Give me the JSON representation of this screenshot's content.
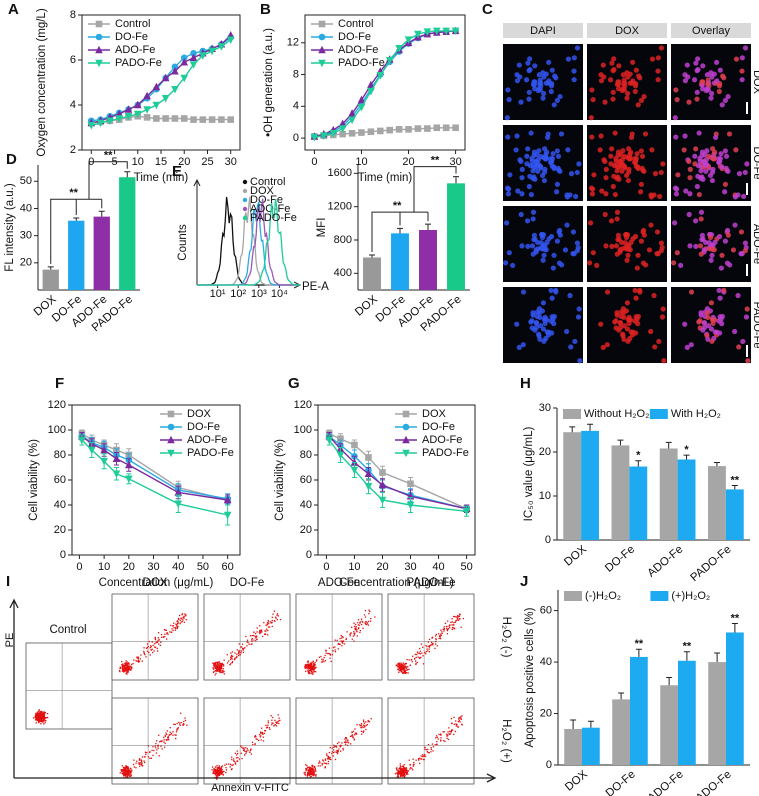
{
  "chart_data": [
    {
      "panel": "A",
      "type": "line",
      "x_label": "Time (min)",
      "y_label": "Oxygen concentration (mg/L)",
      "xlim": [
        -2,
        32
      ],
      "xticks": [
        0,
        5,
        10,
        15,
        20,
        25,
        30
      ],
      "ylim": [
        2,
        8
      ],
      "yticks": [
        2,
        4,
        6,
        8
      ],
      "legend": "upper left",
      "x": [
        0,
        2,
        4,
        6,
        8,
        10,
        12,
        14,
        16,
        18,
        20,
        22,
        24,
        26,
        28,
        30
      ],
      "series": [
        {
          "name": "Control",
          "color": "#a6a6a6",
          "marker": "square",
          "values": [
            3.2,
            3.25,
            3.3,
            3.35,
            3.45,
            3.5,
            3.45,
            3.4,
            3.4,
            3.4,
            3.4,
            3.35,
            3.35,
            3.35,
            3.35,
            3.35
          ]
        },
        {
          "name": "DO-Fe",
          "color": "#29abe2",
          "marker": "circle",
          "values": [
            3.3,
            3.35,
            3.5,
            3.65,
            3.8,
            4.0,
            4.3,
            4.7,
            5.2,
            5.7,
            6.1,
            6.3,
            6.4,
            6.5,
            6.7,
            7.0
          ]
        },
        {
          "name": "ADO-Fe",
          "color": "#7b2a9e",
          "marker": "triangle",
          "values": [
            3.2,
            3.3,
            3.45,
            3.6,
            3.8,
            4.0,
            4.4,
            4.8,
            5.2,
            5.5,
            5.9,
            6.1,
            6.3,
            6.5,
            6.7,
            7.1
          ]
        },
        {
          "name": "PADO-Fe",
          "color": "#1fcc9a",
          "marker": "triangle-down",
          "values": [
            3.1,
            3.2,
            3.3,
            3.4,
            3.5,
            3.6,
            3.8,
            4.0,
            4.3,
            4.7,
            5.2,
            5.8,
            6.2,
            6.4,
            6.6,
            6.9
          ]
        }
      ]
    },
    {
      "panel": "B",
      "type": "line",
      "x_label": "Time (min)",
      "y_label": "•OH generation (a.u.)",
      "xlim": [
        -2,
        32
      ],
      "xticks": [
        0,
        10,
        20,
        30
      ],
      "ylim": [
        -1.5,
        15.5
      ],
      "yticks": [
        0,
        4,
        8,
        12
      ],
      "legend": "upper left",
      "x": [
        0,
        2,
        4,
        6,
        8,
        10,
        12,
        14,
        16,
        18,
        20,
        22,
        24,
        26,
        28,
        30
      ],
      "series": [
        {
          "name": "Control",
          "color": "#a6a6a6",
          "marker": "square",
          "values": [
            0.2,
            0.3,
            0.4,
            0.5,
            0.6,
            0.7,
            0.8,
            0.9,
            1.0,
            1.1,
            1.1,
            1.2,
            1.2,
            1.3,
            1.3,
            1.3
          ]
        },
        {
          "name": "DO-Fe",
          "color": "#29abe2",
          "marker": "circle",
          "values": [
            0.2,
            0.4,
            0.8,
            1.5,
            2.7,
            4.3,
            6.2,
            8.0,
            9.6,
            10.9,
            11.9,
            12.6,
            13.1,
            13.3,
            13.4,
            13.5
          ]
        },
        {
          "name": "ADO-Fe",
          "color": "#7b2a9e",
          "marker": "triangle",
          "values": [
            0.2,
            0.5,
            1.0,
            1.8,
            3.1,
            4.8,
            6.7,
            8.4,
            9.9,
            11.1,
            12.0,
            12.7,
            13.1,
            13.3,
            13.4,
            13.5
          ]
        },
        {
          "name": "PADO-Fe",
          "color": "#1fcc9a",
          "marker": "triangle-down",
          "values": [
            0.1,
            0.3,
            0.6,
            1.2,
            2.3,
            3.9,
            5.9,
            7.9,
            9.8,
            11.3,
            12.4,
            13.1,
            13.4,
            13.5,
            13.5,
            13.5
          ]
        }
      ]
    },
    {
      "panel": "D",
      "type": "bar",
      "y_label": "FL intensity (a.u.)",
      "ylim": [
        10,
        56
      ],
      "yticks": [
        20,
        30,
        40,
        50
      ],
      "categories": [
        "DOX",
        "DO-Fe",
        "ADO-Fe",
        "PADO-Fe"
      ],
      "values": [
        17.5,
        35.5,
        37,
        51.5
      ],
      "errors": [
        1,
        1,
        2,
        2
      ],
      "colors": [
        "#999999",
        "#1ea7f0",
        "#8e2fa8",
        "#19c98a"
      ],
      "significance": [
        "**",
        "**"
      ]
    },
    {
      "panel": "E",
      "type": "histogram_overlay",
      "x_label": "PE-A",
      "y_label": "Counts",
      "xlog": true,
      "xlim": [
        1,
        100000
      ],
      "xticks": [
        {
          "value": 10,
          "label": "10¹"
        },
        {
          "value": 100,
          "label": "10²"
        },
        {
          "value": 1000,
          "label": "10³"
        },
        {
          "value": 10000,
          "label": "10⁴"
        }
      ],
      "series": [
        {
          "name": "Control",
          "color": "#111111"
        },
        {
          "name": "DOX",
          "color": "#a6a6a6"
        },
        {
          "name": "DO-Fe",
          "color": "#29abe2"
        },
        {
          "name": "ADO-Fe",
          "color": "#9b59b6"
        },
        {
          "name": "PADO-Fe",
          "color": "#1fcc9a"
        }
      ]
    },
    {
      "type": "bar",
      "y_label": "MFI",
      "ylim": [
        200,
        1700
      ],
      "yticks": [
        400,
        800,
        1200,
        1600
      ],
      "categories": [
        "DOX",
        "DO-Fe",
        "ADO-Fe",
        "PADO-Fe"
      ],
      "values": [
        590,
        880,
        920,
        1480
      ],
      "errors": [
        30,
        60,
        70,
        80
      ],
      "colors": [
        "#999999",
        "#1ea7f0",
        "#8e2fa8",
        "#19c98a"
      ],
      "significance": [
        "**",
        "**"
      ]
    },
    {
      "panel": "F",
      "type": "line",
      "x_label": "Concentration (μg/mL)",
      "y_label": "Cell viability (%)",
      "xlim": [
        -3,
        65
      ],
      "xticks": [
        0,
        10,
        20,
        30,
        40,
        50,
        60
      ],
      "ylim": [
        0,
        120
      ],
      "yticks": [
        0,
        20,
        40,
        60,
        80,
        100,
        120
      ],
      "legend": "upper right",
      "x": [
        1,
        5,
        10,
        15,
        20,
        40,
        60
      ],
      "series": [
        {
          "name": "DOX",
          "color": "#a6a6a6",
          "marker": "square",
          "values": [
            97,
            92,
            88,
            84,
            80,
            54,
            44
          ],
          "errors": [
            3,
            4,
            4,
            5,
            5,
            5,
            4
          ]
        },
        {
          "name": "DO-Fe",
          "color": "#29abe2",
          "marker": "circle",
          "values": [
            95,
            90,
            86,
            80,
            76,
            52,
            45
          ],
          "errors": [
            3,
            4,
            5,
            5,
            5,
            5,
            4
          ]
        },
        {
          "name": "ADO-Fe",
          "color": "#7b2a9e",
          "marker": "triangle",
          "values": [
            95,
            89,
            84,
            77,
            72,
            50,
            44
          ],
          "errors": [
            3,
            4,
            5,
            5,
            5,
            5,
            4
          ]
        },
        {
          "name": "PADO-Fe",
          "color": "#1fcc9a",
          "marker": "triangle-down",
          "values": [
            92,
            84,
            75,
            65,
            61,
            41,
            32
          ],
          "errors": [
            4,
            6,
            6,
            5,
            4,
            7,
            8
          ]
        }
      ]
    },
    {
      "panel": "G",
      "type": "line",
      "x_label": "Concentration (μg/mL)",
      "y_label": "Cell viability (%)",
      "xlim": [
        -3,
        53
      ],
      "xticks": [
        0,
        10,
        20,
        30,
        40,
        50
      ],
      "ylim": [
        0,
        120
      ],
      "yticks": [
        0,
        20,
        40,
        60,
        80,
        100,
        120
      ],
      "legend": "upper right",
      "x": [
        1,
        5,
        10,
        15,
        20,
        30,
        50
      ],
      "series": [
        {
          "name": "DOX",
          "color": "#a6a6a6",
          "marker": "square",
          "values": [
            97,
            93,
            88,
            78,
            66,
            57,
            37
          ],
          "errors": [
            3,
            4,
            4,
            5,
            5,
            5,
            3
          ]
        },
        {
          "name": "DO-Fe",
          "color": "#29abe2",
          "marker": "circle",
          "values": [
            95,
            88,
            79,
            68,
            55,
            48,
            37
          ],
          "errors": [
            3,
            4,
            5,
            5,
            5,
            5,
            3
          ]
        },
        {
          "name": "ADO-Fe",
          "color": "#7b2a9e",
          "marker": "triangle",
          "values": [
            95,
            85,
            74,
            65,
            56,
            47,
            37
          ],
          "errors": [
            3,
            4,
            5,
            5,
            5,
            5,
            3
          ]
        },
        {
          "name": "PADO-Fe",
          "color": "#1fcc9a",
          "marker": "triangle-down",
          "values": [
            92,
            80,
            68,
            55,
            44,
            40,
            35
          ],
          "errors": [
            4,
            6,
            6,
            6,
            6,
            6,
            4
          ]
        }
      ]
    },
    {
      "panel": "H",
      "type": "bar",
      "y_label": "IC₅₀ value (μg/mL)",
      "ylim": [
        0,
        30
      ],
      "yticks": [
        0,
        10,
        20,
        30
      ],
      "legend": "top",
      "categories": [
        "DOX",
        "DO-Fe",
        "ADO-Fe",
        "PADO-Fe"
      ],
      "series": [
        {
          "name": "Without H₂O₂",
          "color": "#a6a6a6",
          "values": [
            24.5,
            21.5,
            20.8,
            16.8
          ],
          "errors": [
            1.2,
            1.2,
            1.4,
            0.8
          ]
        },
        {
          "name": "With H₂O₂",
          "color": "#1eaaf1",
          "values": [
            24.8,
            16.7,
            18.3,
            11.5
          ],
          "errors": [
            1.5,
            1.3,
            1.0,
            0.9
          ],
          "value_annotations": [
            null,
            "*",
            "*",
            "**"
          ]
        }
      ]
    },
    {
      "panel": "J",
      "type": "bar",
      "y_label": "Apoptosis positive cells (%)",
      "ylim": [
        0,
        68
      ],
      "yticks": [
        0,
        20,
        40,
        60
      ],
      "legend": "top",
      "categories": [
        "DOX",
        "DO-Fe",
        "ADO-Fe",
        "PADO-Fe"
      ],
      "series": [
        {
          "name": "(-)H₂O₂",
          "color": "#a6a6a6",
          "values": [
            14,
            25.5,
            31,
            40
          ],
          "errors": [
            3.5,
            2.5,
            3,
            3.5
          ]
        },
        {
          "name": "(+)H₂O₂",
          "color": "#1eaaf1",
          "values": [
            14.5,
            42,
            40.5,
            51.5
          ],
          "errors": [
            2.5,
            3,
            3.5,
            3.5
          ],
          "value_annotations": [
            null,
            "**",
            "**",
            "**"
          ]
        }
      ]
    }
  ],
  "microscopy": {
    "panel": "C",
    "columns": [
      "DAPI",
      "DOX",
      "Overlay"
    ],
    "rows": [
      "DOX",
      "DO-Fe",
      "ADO-Fe",
      "PADO-Fe"
    ]
  },
  "flow_cytometry": {
    "panel": "I",
    "control": "Control",
    "columns": [
      "DOX",
      "DO-Fe",
      "ADO-Fe",
      "PADO-Fe"
    ],
    "rows": [
      "H₂O₂ (-)",
      "H₂O₂ (+)"
    ],
    "y_label": "PE",
    "x_label": "Annexin V-FITC"
  }
}
